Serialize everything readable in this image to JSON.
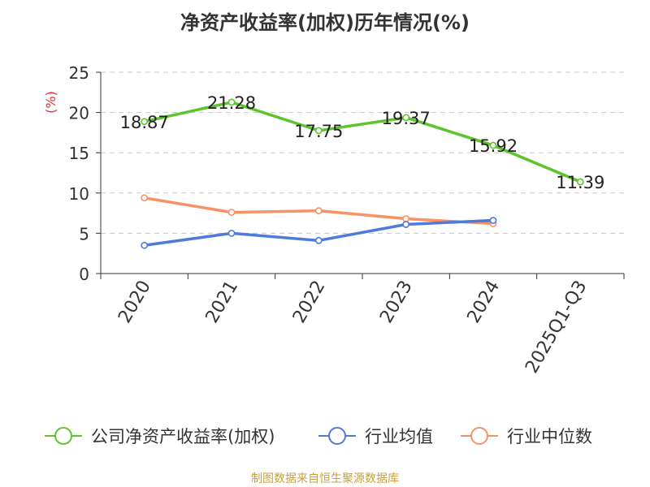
{
  "title": "净资产收益率(加权)历年情况(%)",
  "source": "制图数据来自恒生聚源数据库",
  "colors": {
    "roe": "#5ec42e",
    "avg": "#4e7bd9",
    "median": "#f59367",
    "source": "#c9a13c",
    "ylabel": "#e0302f",
    "axis": "#333333",
    "grid": "#c8c8c8"
  },
  "chart_data": {
    "type": "line",
    "categories": [
      "2020",
      "2021",
      "2022",
      "2023",
      "2024",
      "2025Q1-Q3"
    ],
    "ylabel": "(%)",
    "ylim": [
      0,
      25
    ],
    "yticks": [
      0,
      5,
      10,
      15,
      20,
      25
    ],
    "grid": true,
    "legend_position": "bottom",
    "series": [
      {
        "name": "公司净资产收益率(加权)",
        "color_key": "roe",
        "values": [
          18.87,
          21.28,
          17.75,
          19.37,
          15.92,
          11.39
        ],
        "labels": [
          "18.87",
          "21.28",
          "17.75",
          "19.37",
          "15.92",
          "11.39"
        ]
      },
      {
        "name": "行业均值",
        "color_key": "avg",
        "values": [
          3.5,
          5.0,
          4.1,
          6.1,
          6.6,
          null
        ]
      },
      {
        "name": "行业中位数",
        "color_key": "median",
        "values": [
          9.4,
          7.6,
          7.8,
          6.8,
          6.2,
          null
        ]
      }
    ]
  }
}
